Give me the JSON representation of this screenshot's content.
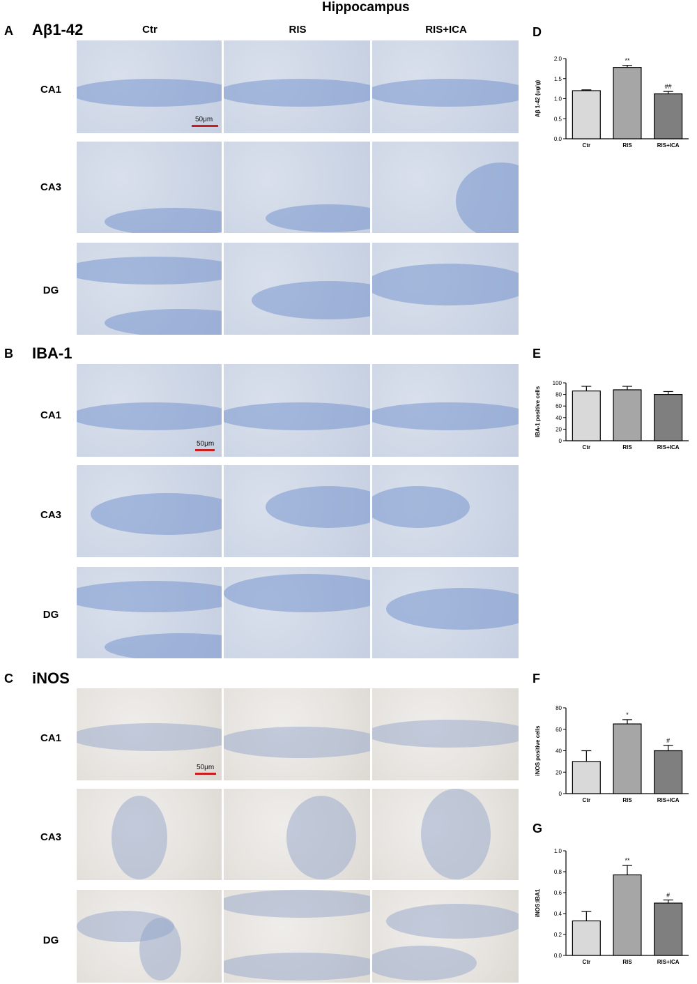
{
  "figure_title": "Hippocampus",
  "columns": [
    "Ctr",
    "RIS",
    "RIS+ICA"
  ],
  "rows": [
    "CA1",
    "CA3",
    "DG"
  ],
  "panels": {
    "A": {
      "letter": "A",
      "marker": "Aβ1-42",
      "scale_bar": "50μm"
    },
    "B": {
      "letter": "B",
      "marker": "IBA-1",
      "scale_bar": "50μm"
    },
    "C": {
      "letter": "C",
      "marker": "iNOS",
      "scale_bar": "50μm"
    },
    "D": {
      "letter": "D"
    },
    "E": {
      "letter": "E"
    },
    "F": {
      "letter": "F"
    },
    "G": {
      "letter": "G"
    }
  },
  "colors": {
    "bar_ctr": "#d9d9d9",
    "bar_ris": "#a6a6a6",
    "bar_risica": "#7f7f7f",
    "scale_bar": "#c81e1e"
  },
  "chart_data": [
    {
      "panel": "D",
      "type": "bar",
      "categories": [
        "Ctr",
        "RIS",
        "RIS+ICA"
      ],
      "values": [
        1.2,
        1.78,
        1.12
      ],
      "errors": [
        0.02,
        0.05,
        0.06
      ],
      "significance": [
        "",
        "**",
        "##"
      ],
      "ylabel": "Aβ 1-42 (ug/g)",
      "ylim": [
        0,
        2.0
      ],
      "yticks": [
        "0.0",
        "0.5",
        "1.0",
        "1.5",
        "2.0"
      ]
    },
    {
      "panel": "E",
      "type": "bar",
      "categories": [
        "Ctr",
        "RIS",
        "RIS+ICA"
      ],
      "values": [
        86,
        88,
        80
      ],
      "errors": [
        8,
        6,
        5
      ],
      "significance": [
        "",
        "",
        ""
      ],
      "ylabel": "IBA-1 positive cells",
      "ylim": [
        0,
        100
      ],
      "yticks": [
        "0",
        "20",
        "40",
        "60",
        "80",
        "100"
      ]
    },
    {
      "panel": "F",
      "type": "bar",
      "categories": [
        "Ctr",
        "RIS",
        "RIS+ICA"
      ],
      "values": [
        30,
        65,
        40
      ],
      "errors": [
        10,
        4,
        5
      ],
      "significance": [
        "",
        "*",
        "#"
      ],
      "ylabel": "iNOS positive cells",
      "ylim": [
        0,
        80
      ],
      "yticks": [
        "0",
        "20",
        "40",
        "60",
        "80"
      ]
    },
    {
      "panel": "G",
      "type": "bar",
      "categories": [
        "Ctr",
        "RIS",
        "RIS+ICA"
      ],
      "values": [
        0.33,
        0.77,
        0.5
      ],
      "errors": [
        0.09,
        0.09,
        0.03
      ],
      "significance": [
        "",
        "**",
        "#"
      ],
      "ylabel": "iNOS:IBA1",
      "ylim": [
        0,
        1.0
      ],
      "yticks": [
        "0.0",
        "0.2",
        "0.4",
        "0.6",
        "0.8",
        "1.0"
      ]
    }
  ]
}
